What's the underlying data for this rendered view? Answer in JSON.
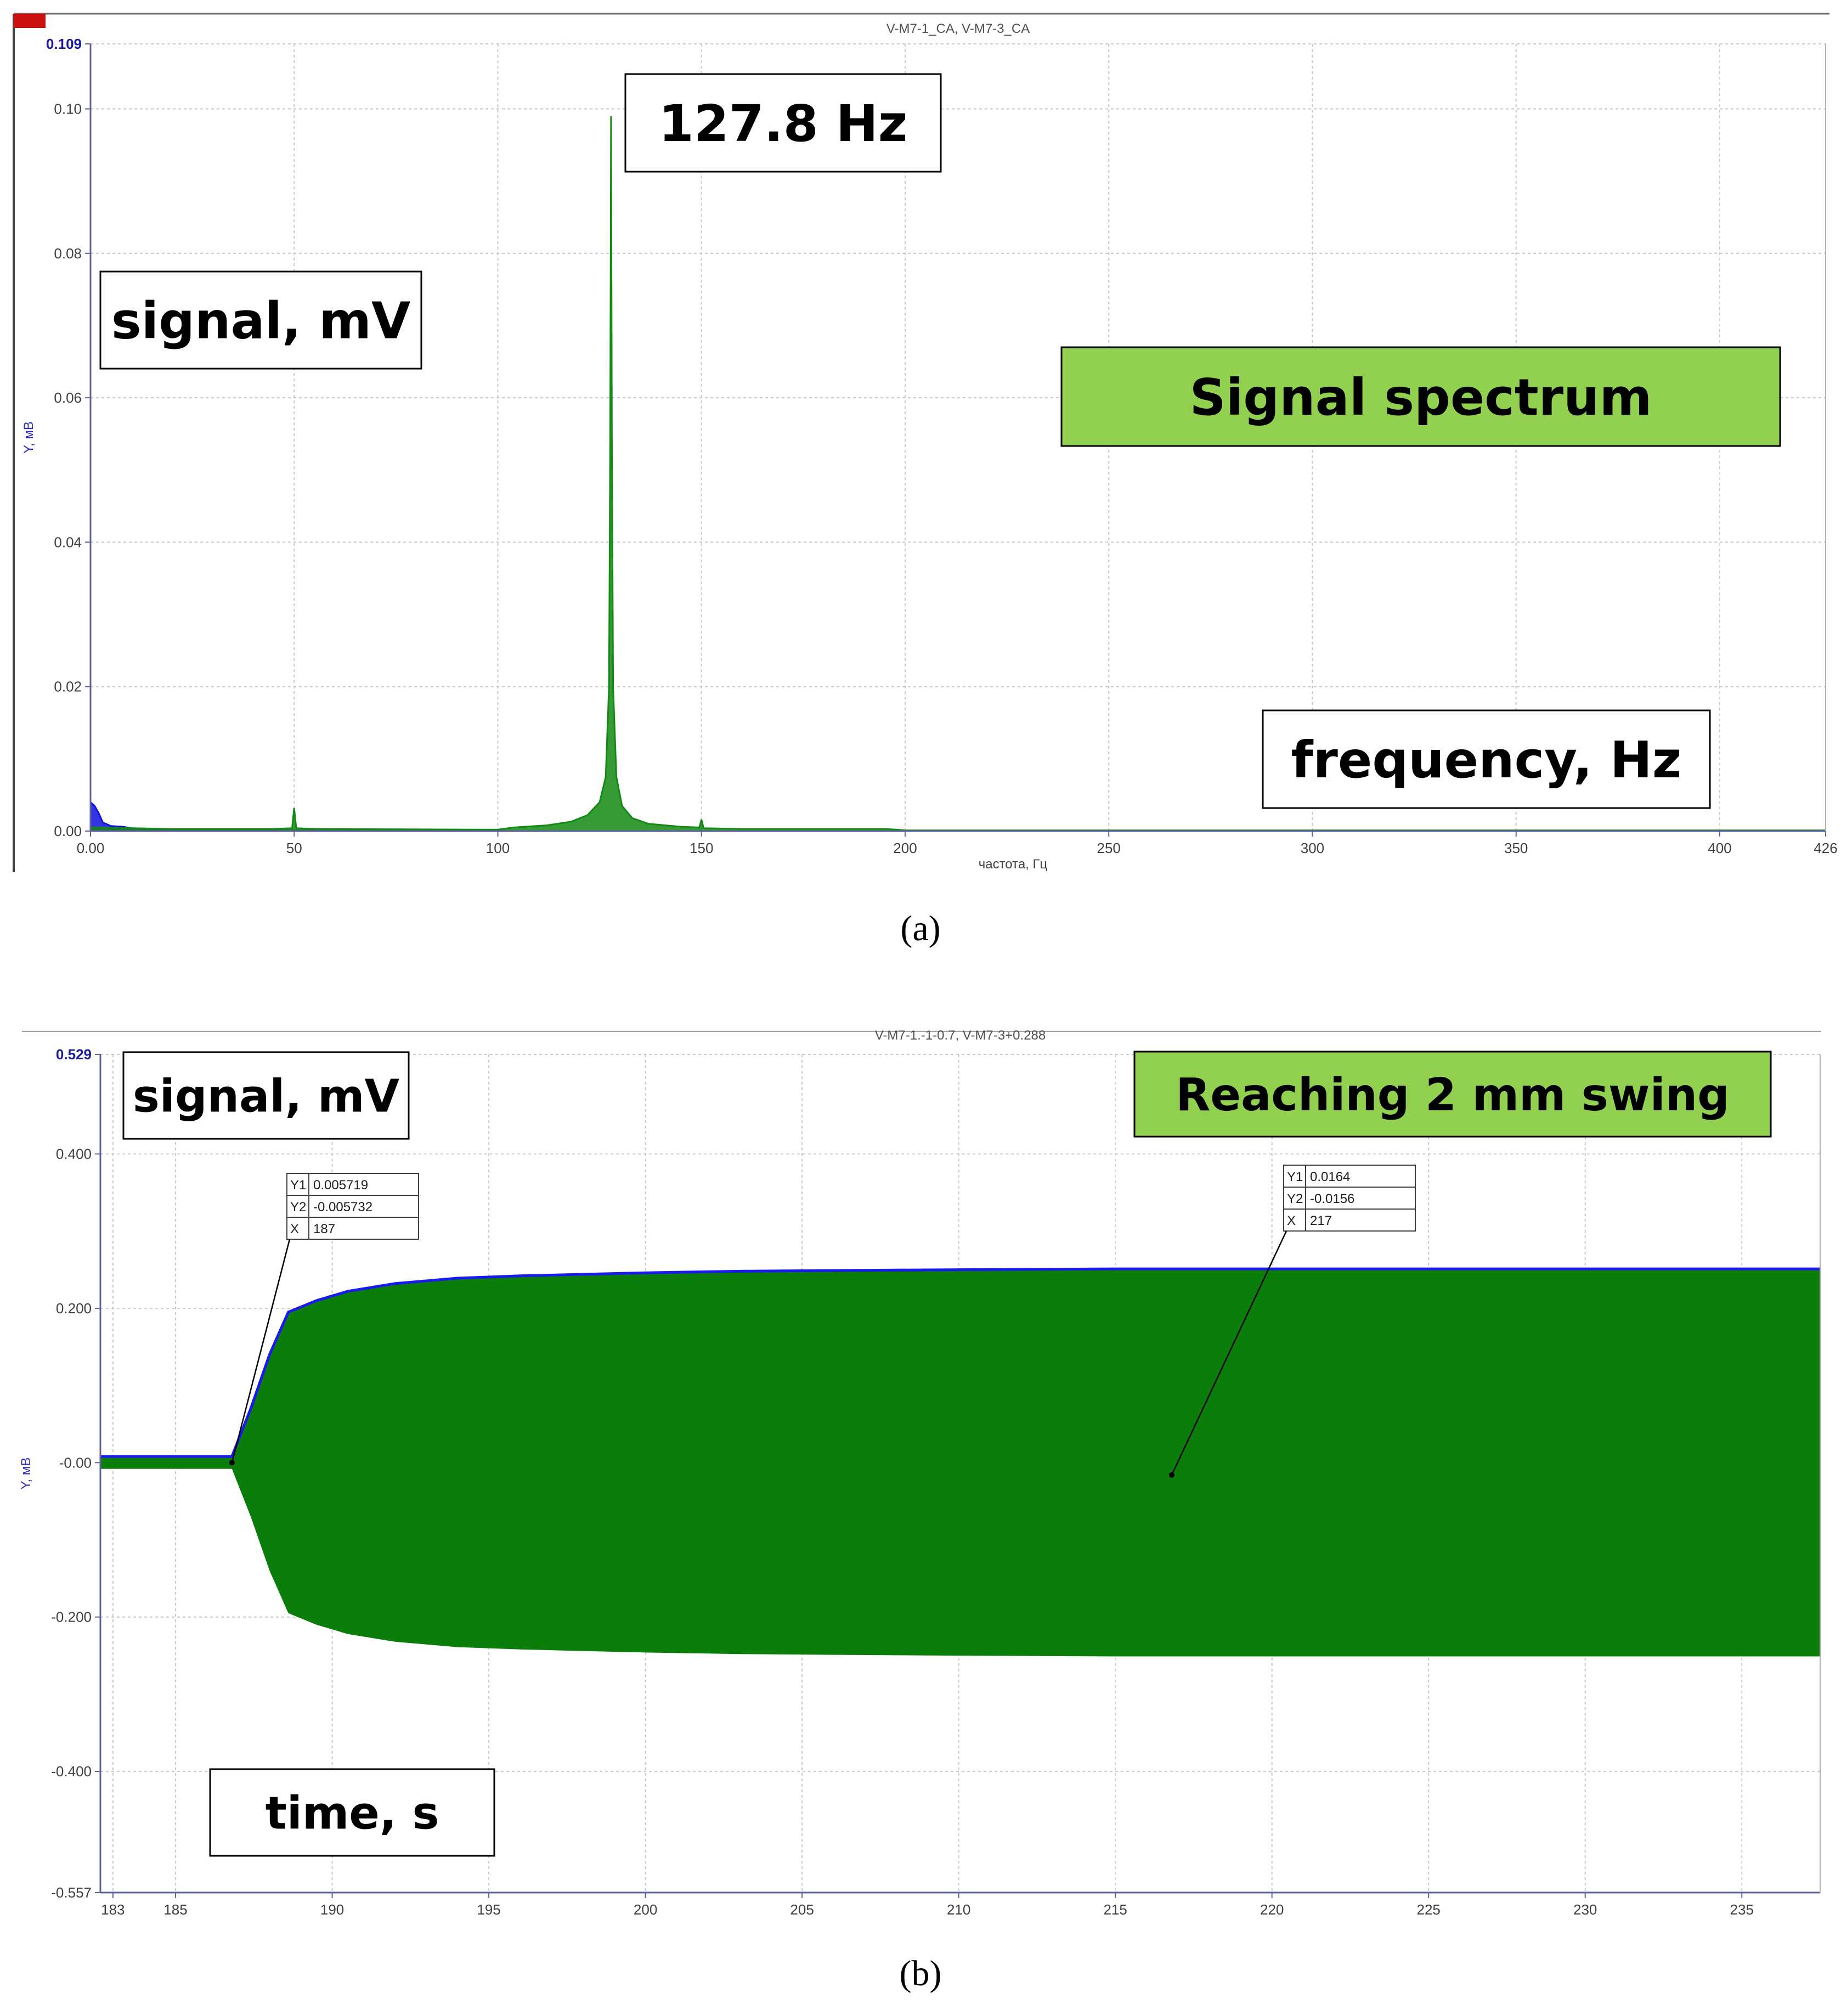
{
  "captions": {
    "a": "(a)",
    "b": "(b)"
  },
  "chart_data": [
    {
      "type": "line",
      "id": "a",
      "title": "V-M7-1_CA, V-M7-3_CA",
      "xlabel": "частота, Гц",
      "ylabel": "Y, мВ",
      "xlim": [
        0,
        426
      ],
      "ylim": [
        0,
        0.109
      ],
      "x_ticks": [
        "0.00",
        "50",
        "100",
        "150",
        "200",
        "250",
        "300",
        "350",
        "400",
        "426"
      ],
      "x_tick_values": [
        0,
        50,
        100,
        150,
        200,
        250,
        300,
        350,
        400,
        426
      ],
      "y_ticks": [
        "0.00",
        "0.02",
        "0.04",
        "0.06",
        "0.08",
        "0.10",
        "0.109"
      ],
      "y_tick_values": [
        0,
        0.02,
        0.04,
        0.06,
        0.08,
        0.1,
        0.109
      ],
      "grid": true,
      "colors": {
        "series1": "#1010e0",
        "series2": "#138a13",
        "axis": "#6060a0",
        "frame": "#505050",
        "tick_text": "#404040",
        "top_tick": "#1a1aa0"
      },
      "series": [
        {
          "x": [
            0,
            1,
            2,
            3,
            5,
            8,
            10,
            15,
            20,
            30,
            40,
            60,
            80,
            100
          ],
          "values": [
            0.004,
            0.0035,
            0.0025,
            0.0012,
            0.0007,
            0.0006,
            0.0004,
            0.0003,
            0.0002,
            0.0002,
            0.0001,
            0.0001,
            0.0001,
            0.0001
          ]
        },
        {
          "x": [
            0,
            20,
            45,
            49.5,
            50,
            50.5,
            55,
            100,
            104,
            112,
            118,
            122,
            125,
            126.5,
            127.3,
            127.6,
            127.8,
            128.0,
            128.3,
            129.1,
            130.5,
            133,
            137,
            145,
            149.5,
            150,
            150.5,
            160,
            195,
            198,
            200,
            250,
            300,
            350,
            400,
            426
          ],
          "values": [
            0.0005,
            0.0003,
            0.0003,
            0.0004,
            0.0032,
            0.0004,
            0.0003,
            0.0002,
            0.0005,
            0.0008,
            0.0013,
            0.0022,
            0.004,
            0.0075,
            0.02,
            0.054,
            0.099,
            0.054,
            0.02,
            0.0075,
            0.0035,
            0.0018,
            0.001,
            0.0006,
            0.0005,
            0.0016,
            0.0004,
            0.0003,
            0.0003,
            0.0002,
            0.0001,
            0.0001,
            0.0001,
            0.0001,
            0.0001,
            0.0001
          ]
        }
      ],
      "annotations": [
        {
          "text": "127.8 Hz",
          "style": "white"
        },
        {
          "text": "signal, mV",
          "style": "white"
        },
        {
          "text": "Signal spectrum",
          "style": "green"
        },
        {
          "text": "frequency, Hz",
          "style": "white"
        }
      ]
    },
    {
      "type": "area",
      "id": "b",
      "title": "V-M7-1.-1-0.7, V-M7-3+0.288",
      "xlabel": "",
      "ylabel": "Y, мВ",
      "xlim": [
        182.6,
        237.5
      ],
      "ylim": [
        -0.557,
        0.529
      ],
      "x_ticks": [
        "183",
        "185",
        "190",
        "195",
        "200",
        "205",
        "210",
        "215",
        "220",
        "225",
        "230",
        "235"
      ],
      "x_tick_values": [
        183,
        185,
        190,
        195,
        200,
        205,
        210,
        215,
        220,
        225,
        230,
        235
      ],
      "y_ticks": [
        "0.529",
        "0.400",
        "0.200",
        "-0.00",
        "-0.200",
        "-0.400",
        "-0.557"
      ],
      "y_tick_values": [
        0.529,
        0.4,
        0.2,
        0,
        -0.2,
        -0.4,
        -0.557
      ],
      "grid": true,
      "colors": {
        "envelope": "#1a1aee",
        "fill": "#0a7d0a",
        "axis": "#6060a0",
        "frame": "#505050",
        "tick_text": "#404040",
        "top_tick": "#1a1aa0"
      },
      "envelope": {
        "x": [
          182.6,
          186.8,
          187.4,
          188.0,
          188.6,
          189.5,
          190.5,
          192,
          194,
          196,
          198,
          200,
          203,
          206,
          210,
          215,
          220,
          225,
          230,
          235,
          237.5
        ],
        "upper": [
          0.008,
          0.008,
          0.07,
          0.14,
          0.195,
          0.21,
          0.222,
          0.232,
          0.239,
          0.242,
          0.244,
          0.246,
          0.248,
          0.249,
          0.25,
          0.251,
          0.251,
          0.251,
          0.251,
          0.251,
          0.251
        ],
        "lower": [
          -0.008,
          -0.008,
          -0.07,
          -0.14,
          -0.195,
          -0.21,
          -0.222,
          -0.232,
          -0.239,
          -0.242,
          -0.244,
          -0.246,
          -0.248,
          -0.249,
          -0.25,
          -0.251,
          -0.251,
          -0.251,
          -0.251,
          -0.251,
          -0.251
        ]
      },
      "cursors": [
        {
          "rows": [
            [
              "Y1",
              "0.005719"
            ],
            [
              "Y2",
              "-0.005732"
            ],
            [
              "X",
              "187"
            ]
          ],
          "point": [
            186.8,
            0.0
          ]
        },
        {
          "rows": [
            [
              "Y1",
              "0.0164"
            ],
            [
              "Y2",
              "-0.0156"
            ],
            [
              "X",
              "217"
            ]
          ],
          "point": [
            216.8,
            -0.016
          ]
        }
      ],
      "annotations": [
        {
          "text": "signal, mV",
          "style": "white"
        },
        {
          "text": "Reaching 2 mm swing",
          "style": "green"
        },
        {
          "text": "time, s",
          "style": "white"
        }
      ]
    }
  ]
}
